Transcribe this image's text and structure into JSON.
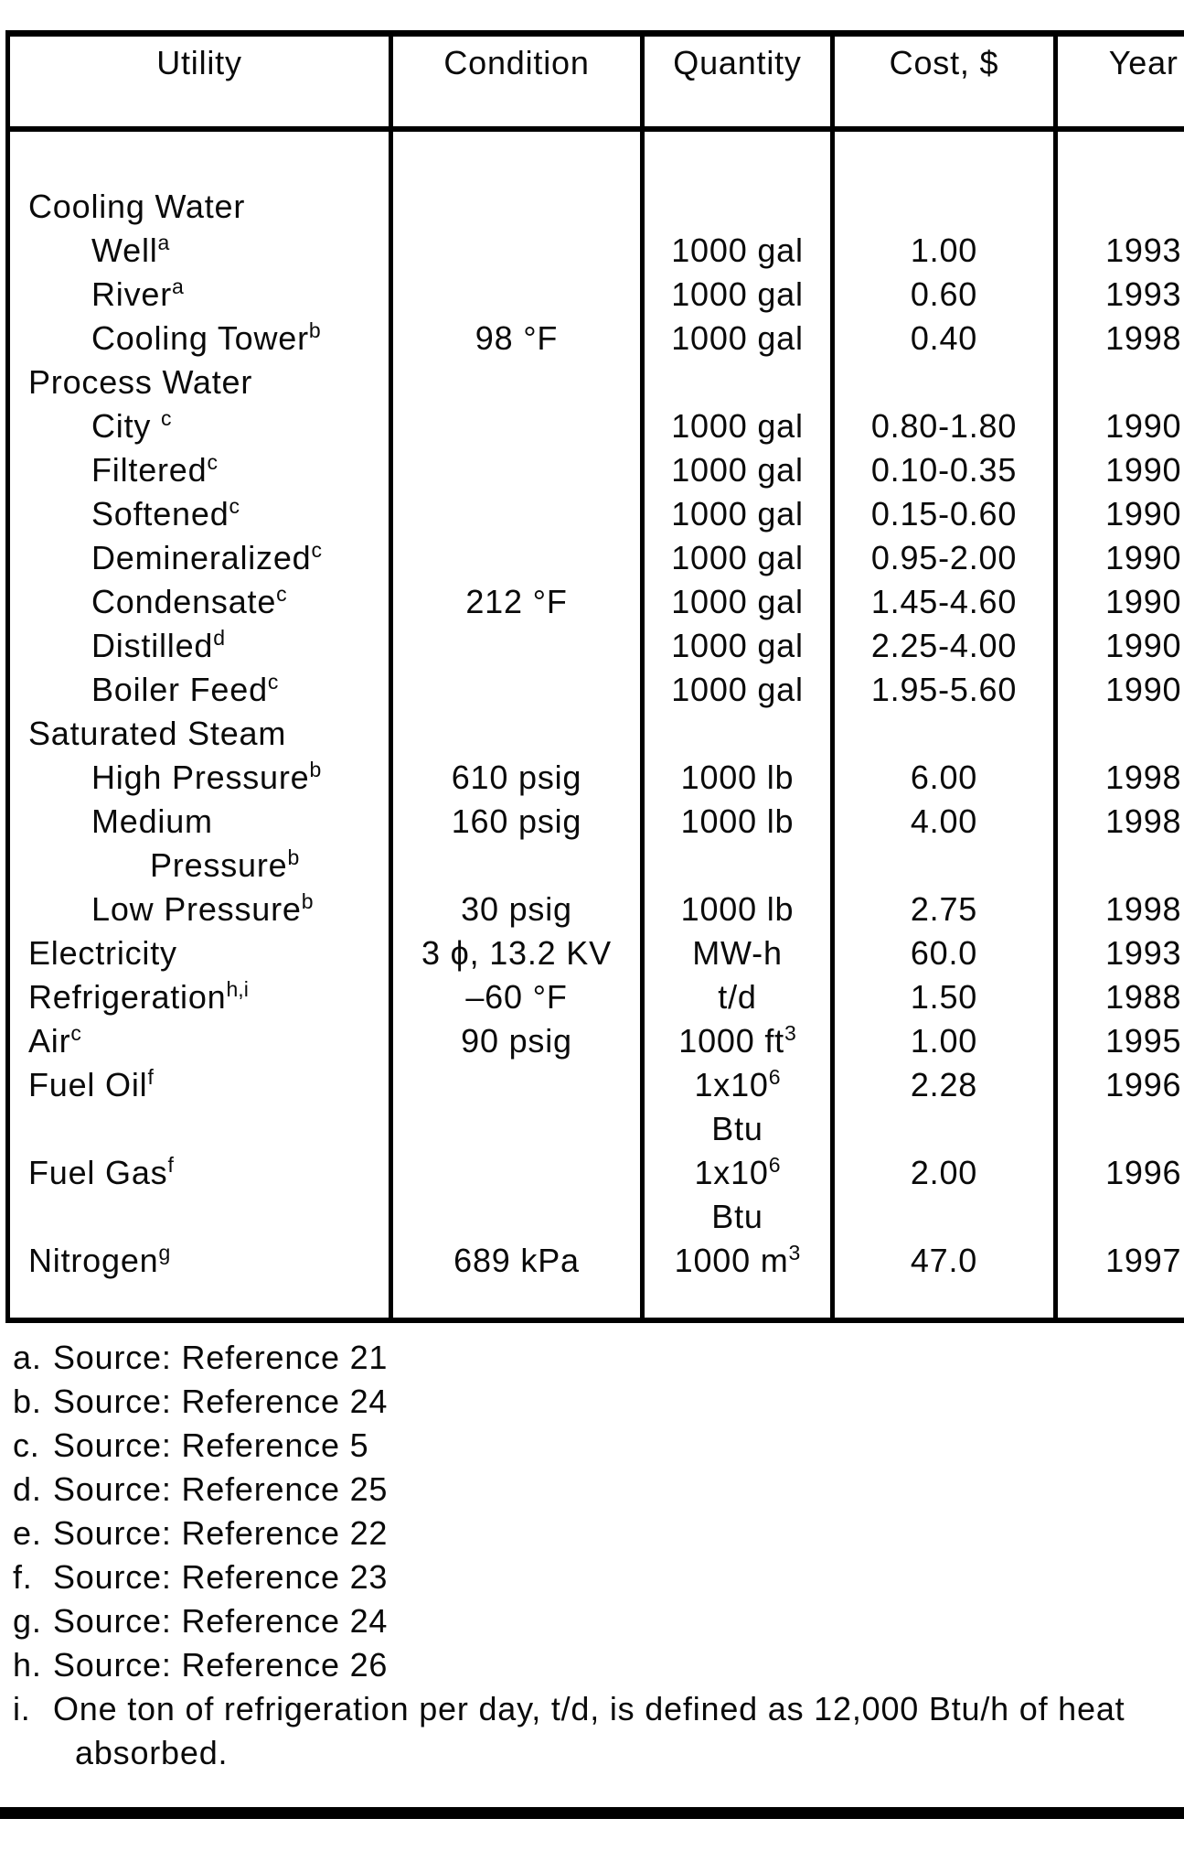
{
  "page": {
    "background": "#ffffff",
    "text_color": "#0a0a0a",
    "border_color": "#000000"
  },
  "table": {
    "columns": [
      "Utility",
      "Condition",
      "Quantity",
      "Cost, $",
      "Year"
    ],
    "rows": [
      {
        "utility": "Cooling Water",
        "usup": "",
        "indent": 0,
        "condition": "",
        "quantity": "",
        "qsup": "",
        "cost": "",
        "year": ""
      },
      {
        "utility": "Well",
        "usup": "a",
        "indent": 1,
        "condition": "",
        "quantity": "1000 gal",
        "qsup": "",
        "cost": "1.00",
        "year": "1993"
      },
      {
        "utility": "River",
        "usup": "a",
        "indent": 1,
        "condition": "",
        "quantity": "1000 gal",
        "qsup": "",
        "cost": "0.60",
        "year": "1993"
      },
      {
        "utility": "Cooling Tower",
        "usup": "b",
        "indent": 1,
        "condition": "98 °F",
        "quantity": "1000 gal",
        "qsup": "",
        "cost": "0.40",
        "year": "1998"
      },
      {
        "utility": "Process Water",
        "usup": "",
        "indent": 0,
        "condition": "",
        "quantity": "",
        "qsup": "",
        "cost": "",
        "year": ""
      },
      {
        "utility": "City ",
        "usup": "c",
        "indent": 1,
        "condition": "",
        "quantity": "1000 gal",
        "qsup": "",
        "cost": "0.80-1.80",
        "year": "1990"
      },
      {
        "utility": "Filtered",
        "usup": "c",
        "indent": 1,
        "condition": "",
        "quantity": "1000 gal",
        "qsup": "",
        "cost": "0.10-0.35",
        "year": "1990"
      },
      {
        "utility": "Softened",
        "usup": "c",
        "indent": 1,
        "condition": "",
        "quantity": "1000 gal",
        "qsup": "",
        "cost": "0.15-0.60",
        "year": "1990"
      },
      {
        "utility": "Demineralized",
        "usup": "c",
        "indent": 1,
        "condition": "",
        "quantity": "1000 gal",
        "qsup": "",
        "cost": "0.95-2.00",
        "year": "1990"
      },
      {
        "utility": "Condensate",
        "usup": "c",
        "indent": 1,
        "condition": "212 °F",
        "quantity": "1000 gal",
        "qsup": "",
        "cost": "1.45-4.60",
        "year": "1990"
      },
      {
        "utility": "Distilled",
        "usup": "d",
        "indent": 1,
        "condition": "",
        "quantity": "1000 gal",
        "qsup": "",
        "cost": "2.25-4.00",
        "year": "1990"
      },
      {
        "utility": "Boiler Feed",
        "usup": "c",
        "indent": 1,
        "condition": "",
        "quantity": "1000 gal",
        "qsup": "",
        "cost": "1.95-5.60",
        "year": "1990"
      },
      {
        "utility": "Saturated Steam",
        "usup": "",
        "indent": 0,
        "condition": "",
        "quantity": "",
        "qsup": "",
        "cost": "",
        "year": ""
      },
      {
        "utility": "High Pressure",
        "usup": "b",
        "indent": 1,
        "condition": "610 psig",
        "quantity": "1000 lb",
        "qsup": "",
        "cost": "6.00",
        "year": "1998"
      },
      {
        "utility": "Medium",
        "usup": "",
        "indent": 1,
        "condition": "160 psig",
        "quantity": "1000 lb",
        "qsup": "",
        "cost": "4.00",
        "year": "1998"
      },
      {
        "utility": "Pressure",
        "usup": "b",
        "indent": 2,
        "condition": "",
        "quantity": "",
        "qsup": "",
        "cost": "",
        "year": ""
      },
      {
        "utility": "Low Pressure",
        "usup": "b",
        "indent": 1,
        "condition": "30 psig",
        "quantity": "1000 lb",
        "qsup": "",
        "cost": "2.75",
        "year": "1998"
      },
      {
        "utility": "Electricity",
        "usup": "",
        "indent": 0,
        "condition": "3 ϕ, 13.2 KV",
        "quantity": "MW-h",
        "qsup": "",
        "cost": "60.0",
        "year": "1993"
      },
      {
        "utility": "Refrigeration",
        "usup": "h,i",
        "indent": 0,
        "condition": "–60 °F",
        "quantity": "t/d",
        "qsup": "",
        "cost": "1.50",
        "year": "1988"
      },
      {
        "utility": "Air",
        "usup": "c",
        "indent": 0,
        "condition": "90 psig",
        "quantity": "1000 ft",
        "qsup": "3",
        "cost": "1.00",
        "year": "1995"
      },
      {
        "utility": "Fuel Oil",
        "usup": "f",
        "indent": 0,
        "condition": "",
        "quantity": "1x10",
        "qsup": "6",
        "cost": "2.28",
        "year": "1996"
      },
      {
        "utility": "",
        "usup": "",
        "indent": 0,
        "condition": "",
        "quantity": "Btu",
        "qsup": "",
        "cost": "",
        "year": ""
      },
      {
        "utility": "Fuel Gas",
        "usup": "f",
        "indent": 0,
        "condition": "",
        "quantity": "1x10",
        "qsup": "6",
        "cost": "2.00",
        "year": "1996"
      },
      {
        "utility": "",
        "usup": "",
        "indent": 0,
        "condition": "",
        "quantity": "Btu",
        "qsup": "",
        "cost": "",
        "year": ""
      },
      {
        "utility": "Nitrogen",
        "usup": "g",
        "indent": 0,
        "condition": "689 kPa",
        "quantity": "1000 m",
        "qsup": "3",
        "cost": "47.0",
        "year": "1997"
      }
    ]
  },
  "footnotes": [
    {
      "label": "a.",
      "text": "Source: Reference 21"
    },
    {
      "label": "b.",
      "text": "Source: Reference 24"
    },
    {
      "label": "c.",
      "text": "Source: Reference 5"
    },
    {
      "label": "d.",
      "text": "Source: Reference 25"
    },
    {
      "label": "e.",
      "text": "Source: Reference 22"
    },
    {
      "label": "f.",
      "text": "Source: Reference 23"
    },
    {
      "label": "g.",
      "text": "Source: Reference 24"
    },
    {
      "label": "h.",
      "text": "Source: Reference 26"
    },
    {
      "label": "i.",
      "text": "One ton of refrigeration per day, t/d, is defined as 12,000 Btu/h of heat",
      "text2": "absorbed."
    }
  ]
}
